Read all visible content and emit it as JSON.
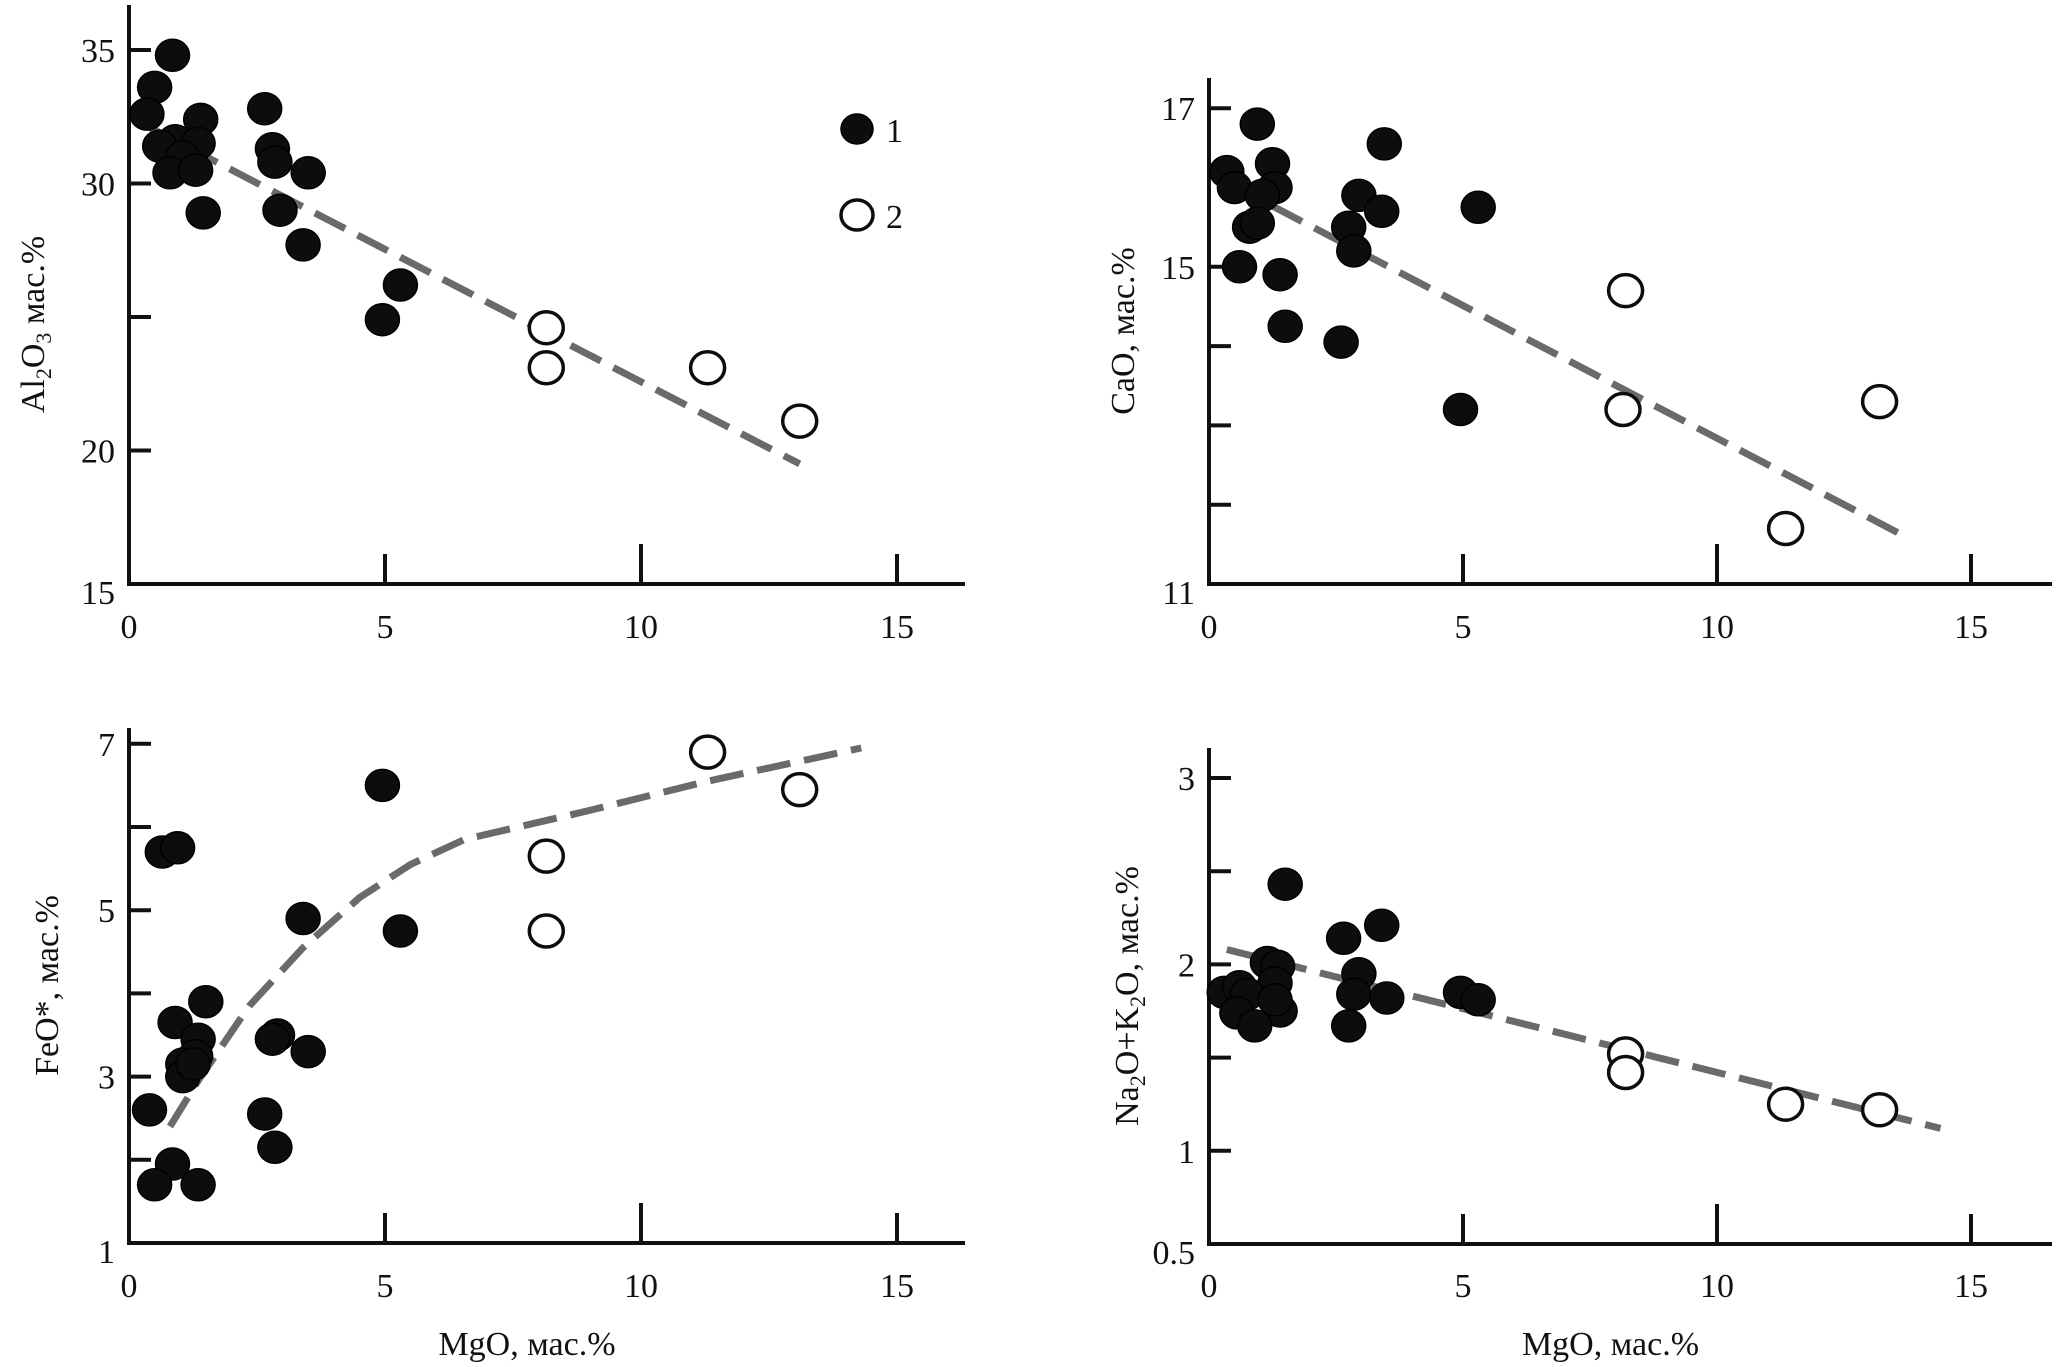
{
  "figure": {
    "legend": [
      {
        "marker": "filled-circle",
        "label": "1"
      },
      {
        "marker": "open-circle",
        "label": "2"
      }
    ]
  },
  "chart_data": [
    {
      "id": "al2o3",
      "type": "scatter",
      "title": "",
      "xlabel": "",
      "ylabel_main": "Al",
      "ylabel_parts": [
        {
          "text": "Al",
          "sub": false
        },
        {
          "text": "2",
          "sub": true
        },
        {
          "text": "O",
          "sub": false
        },
        {
          "text": "3",
          "sub": true
        },
        {
          "text": " мас.%",
          "sub": false
        }
      ],
      "ylabel_plain": "Al2O3 мас.%",
      "xlim": [
        0,
        16.5
      ],
      "ylim": [
        15,
        36.5
      ],
      "xticks": [
        0,
        5,
        10,
        15
      ],
      "xtick_labels": [
        "0",
        "5",
        "10",
        "15"
      ],
      "yticks": [
        15,
        20,
        25,
        30,
        35
      ],
      "ytick_labels": [
        "15",
        "20",
        "",
        "30",
        "35"
      ],
      "legend": "top-right",
      "series": [
        {
          "name": "1",
          "marker": "filled",
          "x": [
            0.85,
            0.5,
            0.35,
            1.4,
            0.9,
            0.6,
            1.35,
            1.05,
            0.8,
            1.3,
            1.45,
            2.65,
            2.8,
            2.85,
            3.5,
            2.95,
            3.4,
            5.3,
            4.95
          ],
          "y": [
            34.8,
            33.6,
            32.6,
            32.4,
            31.6,
            31.4,
            31.5,
            31.0,
            30.4,
            30.5,
            28.9,
            32.8,
            31.3,
            30.8,
            30.4,
            29.0,
            27.7,
            26.2,
            24.9
          ]
        },
        {
          "name": "2",
          "marker": "open",
          "x": [
            8.15,
            8.15,
            11.3,
            13.1
          ],
          "y": [
            24.6,
            23.1,
            23.1,
            21.1
          ]
        }
      ],
      "trend": {
        "x": [
          0.3,
          13.1
        ],
        "y": [
          32.2,
          19.5
        ]
      }
    },
    {
      "id": "cao",
      "type": "scatter",
      "title": "",
      "xlabel": "",
      "ylabel_parts": [
        {
          "text": "CaO, мас.%",
          "sub": false
        }
      ],
      "ylabel_plain": "CaO, мас.%",
      "xlim": [
        0,
        16.5
      ],
      "ylim": [
        11,
        17.6
      ],
      "xticks": [
        0,
        5,
        10,
        15
      ],
      "xtick_labels": [
        "0",
        "5",
        "10",
        "15"
      ],
      "yticks": [
        11,
        12,
        13,
        14,
        15,
        17
      ],
      "ytick_labels": [
        "11",
        "",
        "",
        "",
        "15",
        "17"
      ],
      "legend": "none",
      "series": [
        {
          "name": "1",
          "marker": "filled",
          "x": [
            0.95,
            0.35,
            0.5,
            1.25,
            1.3,
            1.05,
            0.8,
            0.95,
            0.6,
            1.4,
            1.5,
            3.45,
            2.95,
            3.4,
            2.75,
            2.85,
            2.6,
            5.3,
            4.95
          ],
          "y": [
            16.8,
            16.2,
            16.0,
            16.3,
            16.0,
            15.9,
            15.5,
            15.55,
            15.0,
            14.9,
            14.25,
            16.55,
            15.9,
            15.7,
            15.5,
            15.2,
            14.05,
            15.75,
            13.2
          ]
        },
        {
          "name": "2",
          "marker": "open",
          "x": [
            8.2,
            8.15,
            13.2,
            11.35
          ],
          "y": [
            14.7,
            13.2,
            13.3,
            11.7
          ]
        }
      ],
      "trend": {
        "x": [
          0.4,
          13.7
        ],
        "y": [
          16.05,
          11.6
        ]
      }
    },
    {
      "id": "feo",
      "type": "scatter",
      "title": "",
      "xlabel": "MgO, мас.%",
      "ylabel_parts": [
        {
          "text": "FeO*, мас.%",
          "sub": false
        }
      ],
      "ylabel_plain": "FeO*, мас.%",
      "xlim": [
        0,
        16.5
      ],
      "ylim": [
        1,
        7.3
      ],
      "xticks": [
        0,
        5,
        10,
        15
      ],
      "xtick_labels": [
        "0",
        "5",
        "10",
        "15"
      ],
      "yticks": [
        1,
        2,
        3,
        4,
        5,
        6,
        7
      ],
      "ytick_labels": [
        "1",
        "",
        "3",
        "",
        "5",
        "",
        "7"
      ],
      "legend": "none",
      "series": [
        {
          "name": "1",
          "marker": "filled",
          "x": [
            0.65,
            0.95,
            4.95,
            3.4,
            5.3,
            1.5,
            0.9,
            1.35,
            1.3,
            1.05,
            1.05,
            1.25,
            2.9,
            2.8,
            3.5,
            0.4,
            2.65,
            2.85,
            0.85,
            0.5,
            1.35
          ],
          "y": [
            5.7,
            5.75,
            6.5,
            4.9,
            4.75,
            3.9,
            3.65,
            3.45,
            3.25,
            3.15,
            3.0,
            3.15,
            3.5,
            3.45,
            3.3,
            2.6,
            2.55,
            2.15,
            1.95,
            1.7,
            1.7
          ]
        },
        {
          "name": "2",
          "marker": "open",
          "x": [
            11.3,
            13.1,
            8.15,
            8.15
          ],
          "y": [
            6.9,
            6.45,
            5.65,
            4.75
          ]
        }
      ],
      "trend": {
        "x": [
          0.8,
          1.35,
          2.35,
          3.4,
          4.5,
          5.5,
          6.55,
          9.0,
          11.3,
          14.3
        ],
        "y": [
          2.4,
          2.95,
          3.85,
          4.55,
          5.15,
          5.55,
          5.85,
          6.2,
          6.55,
          6.95
        ]
      }
    },
    {
      "id": "na2o_k2o",
      "type": "scatter",
      "title": "",
      "xlabel": "MgO, мас.%",
      "ylabel_parts": [
        {
          "text": "Na",
          "sub": false
        },
        {
          "text": "2",
          "sub": true
        },
        {
          "text": "O+K",
          "sub": false
        },
        {
          "text": "2",
          "sub": true
        },
        {
          "text": "O, мас.%",
          "sub": false
        }
      ],
      "ylabel_plain": "Na2O+K2O, мас.%",
      "xlim": [
        0,
        16.5
      ],
      "ylim": [
        0.5,
        3.2
      ],
      "xticks": [
        0,
        5,
        10,
        15
      ],
      "xtick_labels": [
        "0",
        "5",
        "10",
        "15"
      ],
      "yticks": [
        0.5,
        1,
        1.5,
        2,
        2.5,
        3
      ],
      "ytick_labels": [
        "0.5",
        "1",
        "",
        "2",
        "",
        "3"
      ],
      "legend": "none",
      "series": [
        {
          "name": "1",
          "marker": "filled",
          "x": [
            1.5,
            3.4,
            2.65,
            1.15,
            1.35,
            1.3,
            2.95,
            0.3,
            0.6,
            0.75,
            0.55,
            1.4,
            1.3,
            0.9,
            2.85,
            3.5,
            4.95,
            5.3,
            2.75
          ],
          "y": [
            2.43,
            2.21,
            2.14,
            2.01,
            1.99,
            1.9,
            1.95,
            1.85,
            1.88,
            1.84,
            1.74,
            1.75,
            1.81,
            1.67,
            1.84,
            1.82,
            1.85,
            1.81,
            1.67
          ]
        },
        {
          "name": "2",
          "marker": "open",
          "x": [
            8.2,
            8.2,
            11.35,
            13.2
          ],
          "y": [
            1.52,
            1.42,
            1.25,
            1.22
          ]
        }
      ],
      "trend": {
        "x": [
          0.35,
          14.4
        ],
        "y": [
          2.08,
          1.12
        ]
      }
    }
  ]
}
